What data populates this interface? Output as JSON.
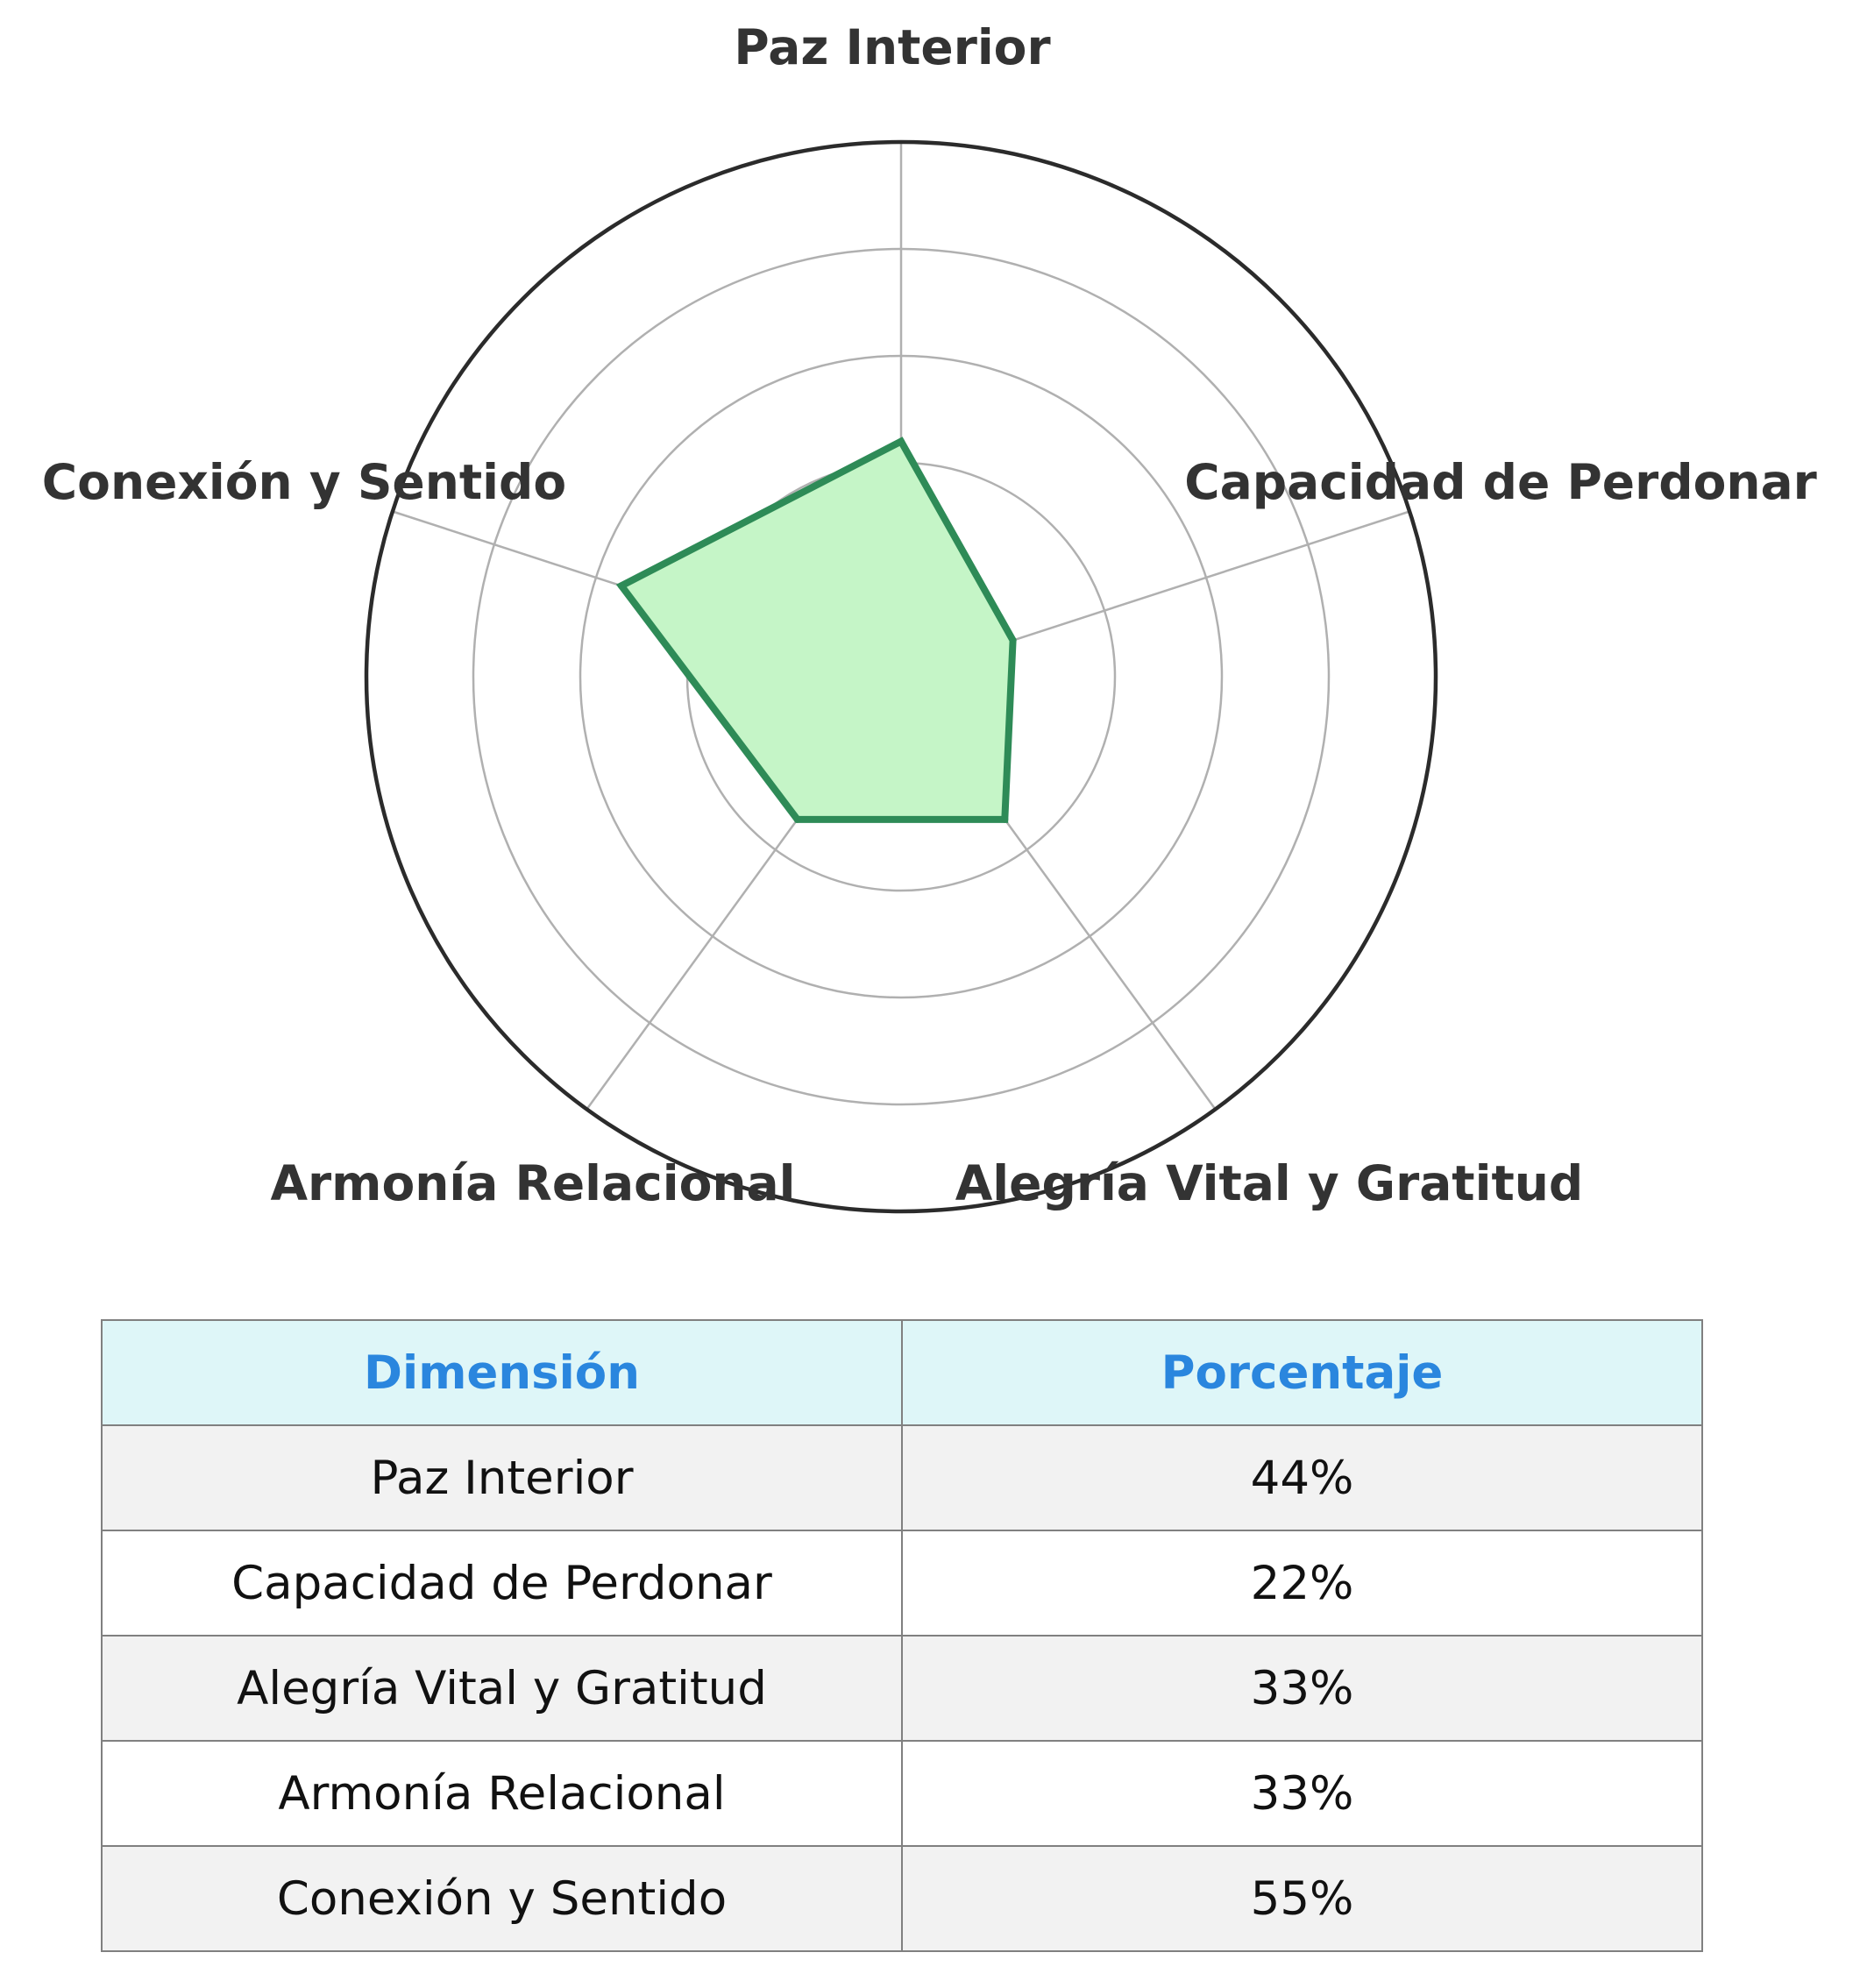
{
  "chart_data": {
    "type": "radar",
    "categories": [
      "Paz Interior",
      "Capacidad de Perdonar",
      "Alegría Vital y Gratitud",
      "Armonía Relacional",
      "Conexión y Sentido"
    ],
    "values": [
      44,
      22,
      33,
      33,
      55
    ],
    "rlim": [
      0,
      100
    ],
    "grid": true,
    "colors": {
      "line": "#2e8b57",
      "fill": "#c5f5c7",
      "grid": "#b0b0b0",
      "frame": "#2b2b2b"
    }
  },
  "table": {
    "headers": [
      "Dimensión",
      "Porcentaje"
    ],
    "rows": [
      [
        "Paz Interior",
        "44%"
      ],
      [
        "Capacidad de Perdonar",
        "22%"
      ],
      [
        "Alegría Vital y Gratitud",
        "33%"
      ],
      [
        "Armonía Relacional",
        "33%"
      ],
      [
        "Conexión y Sentido",
        "55%"
      ]
    ],
    "colors": {
      "header_bg": "#def6f8",
      "header_text": "#2a86de",
      "row_alt_bg": "#f2f2f2",
      "border": "#808080"
    }
  }
}
